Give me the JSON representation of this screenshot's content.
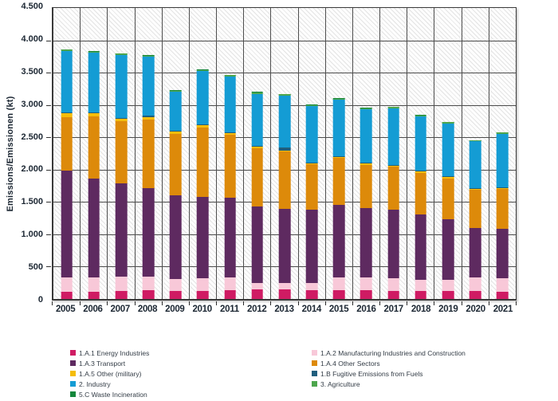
{
  "chart_data": {
    "type": "bar",
    "stacked": true,
    "title": "",
    "xlabel": "",
    "ylabel": "Emissions/Emissionen (kt)",
    "ylim": [
      0,
      4500
    ],
    "grid": true,
    "background_hatch": true,
    "y_ticks": [
      {
        "value": 0,
        "label": "0"
      },
      {
        "value": 500,
        "label": "500"
      },
      {
        "value": 1000,
        "label": "1.000"
      },
      {
        "value": 1500,
        "label": "1.500"
      },
      {
        "value": 2000,
        "label": "2.000"
      },
      {
        "value": 2500,
        "label": "2.500"
      },
      {
        "value": 3000,
        "label": "3.000"
      },
      {
        "value": 3500,
        "label": "3.500"
      },
      {
        "value": 4000,
        "label": "4.000"
      },
      {
        "value": 4500,
        "label": "4.500"
      }
    ],
    "categories": [
      "2005",
      "2006",
      "2007",
      "2008",
      "2009",
      "2010",
      "2011",
      "2012",
      "2013",
      "2014",
      "2015",
      "2016",
      "2017",
      "2018",
      "2019",
      "2020",
      "2021"
    ],
    "series": [
      {
        "name": "1.A.1 Energy Industries",
        "color": "#cf1b63",
        "values": [
          110,
          115,
          125,
          130,
          120,
          127,
          133,
          150,
          148,
          135,
          140,
          135,
          127,
          127,
          120,
          120,
          107
        ]
      },
      {
        "name": "1.A.2 Manufacturing Industries and Construction",
        "color": "#f8c8d8",
        "values": [
          225,
          220,
          222,
          220,
          193,
          194,
          196,
          100,
          100,
          108,
          193,
          198,
          198,
          175,
          180,
          213,
          214
        ]
      },
      {
        "name": "1.A.3 Transport",
        "color": "#5e2a60",
        "values": [
          1655,
          1530,
          1440,
          1363,
          1296,
          1260,
          1240,
          1175,
          1148,
          1140,
          1120,
          1067,
          1058,
          1000,
          930,
          762,
          766
        ]
      },
      {
        "name": "1.A.4 Other Sectors",
        "color": "#dd8a0a",
        "values": [
          825,
          958,
          965,
          1066,
          948,
          1069,
          974,
          906,
          886,
          700,
          729,
          674,
          662,
          651,
          638,
          590,
          618
        ]
      },
      {
        "name": "1.A.5 Other (military)",
        "color": "#f5bd0a",
        "values": [
          55,
          50,
          40,
          35,
          30,
          35,
          25,
          22,
          15,
          18,
          18,
          18,
          18,
          15,
          15,
          14,
          14
        ]
      },
      {
        "name": "1.B Fugitive Emissions from Fuels",
        "color": "#1f5e7d",
        "values": [
          12,
          12,
          12,
          20,
          10,
          12,
          12,
          12,
          45,
          12,
          12,
          12,
          12,
          12,
          12,
          10,
          10
        ]
      },
      {
        "name": "2. Industry",
        "color": "#149cd4",
        "values": [
          955,
          920,
          970,
          910,
          608,
          828,
          865,
          810,
          804,
          867,
          866,
          829,
          875,
          842,
          820,
          728,
          826
        ]
      },
      {
        "name": "3. Agriculture",
        "color": "#4da64d",
        "values": [
          18,
          18,
          18,
          18,
          18,
          18,
          18,
          18,
          20,
          18,
          18,
          18,
          18,
          18,
          20,
          14,
          18
        ]
      },
      {
        "name": "5.C Waste Incineration",
        "color": "#14873c",
        "values": [
          8,
          8,
          8,
          8,
          7,
          8,
          8,
          8,
          8,
          8,
          8,
          8,
          8,
          8,
          8,
          6,
          7
        ]
      }
    ],
    "legend": {
      "position": "bottom",
      "columns": [
        [
          "1.A.1 Energy Industries",
          "1.A.3 Transport",
          "1.A.5 Other (military)",
          "2. Industry",
          "5.C Waste Incineration"
        ],
        [
          "1.A.2 Manufacturing Industries and Construction",
          "1.A.4 Other Sectors",
          "1.B Fugitive Emissions from Fuels",
          "3. Agriculture"
        ]
      ]
    }
  }
}
